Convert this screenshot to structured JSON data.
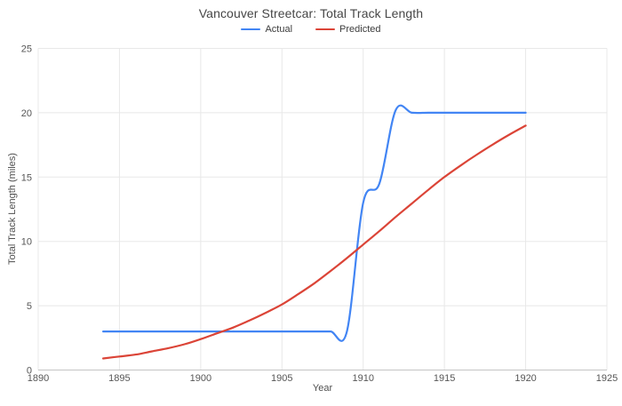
{
  "chart_data": {
    "type": "line",
    "title": "Vancouver Streetcar: Total Track Length",
    "xlabel": "Year",
    "ylabel": "Total Track Length (miles)",
    "xlim": [
      1890,
      1925
    ],
    "ylim": [
      0,
      25
    ],
    "x_ticks": [
      1890,
      1895,
      1900,
      1905,
      1910,
      1915,
      1920,
      1925
    ],
    "y_ticks": [
      0,
      5,
      10,
      15,
      20,
      25
    ],
    "grid": true,
    "legend_position": "top-center",
    "curve": "smooth",
    "x": [
      1894,
      1895,
      1896,
      1897,
      1898,
      1899,
      1900,
      1901,
      1902,
      1903,
      1904,
      1905,
      1906,
      1907,
      1908,
      1909,
      1910,
      1911,
      1912,
      1913,
      1914,
      1915,
      1916,
      1917,
      1918,
      1919,
      1920
    ],
    "series": [
      {
        "name": "Actual",
        "color": "#4285f4",
        "values": [
          3,
          3,
          3,
          3,
          3,
          3,
          3,
          3,
          3,
          3,
          3,
          3,
          3,
          3,
          3,
          3,
          13,
          14.5,
          20.2,
          20,
          20,
          20,
          20,
          20,
          20,
          20,
          20
        ]
      },
      {
        "name": "Predicted",
        "color": "#db4437",
        "values": [
          0.9,
          1.05,
          1.2,
          1.45,
          1.7,
          2.0,
          2.4,
          2.85,
          3.3,
          3.85,
          4.45,
          5.1,
          5.9,
          6.75,
          7.7,
          8.7,
          9.75,
          10.8,
          11.9,
          12.95,
          14.0,
          15.0,
          15.9,
          16.75,
          17.55,
          18.3,
          19.0
        ]
      }
    ]
  },
  "palette": {
    "grid": "#e8e8e8",
    "axis_line": "#c4c4c4",
    "tick_text": "#565656",
    "title_text": "#464646"
  }
}
